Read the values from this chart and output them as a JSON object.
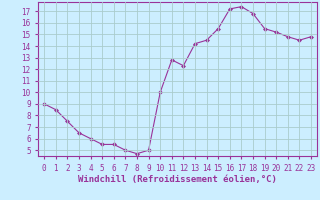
{
  "x": [
    0,
    1,
    2,
    3,
    4,
    5,
    6,
    7,
    8,
    9,
    10,
    11,
    12,
    13,
    14,
    15,
    16,
    17,
    18,
    19,
    20,
    21,
    22,
    23
  ],
  "y": [
    9,
    8.5,
    7.5,
    6.5,
    6,
    5.5,
    5.5,
    5,
    4.7,
    5,
    10,
    12.8,
    12.3,
    14.2,
    14.5,
    15.5,
    17.2,
    17.4,
    16.8,
    15.5,
    15.2,
    14.8,
    14.5,
    14.8
  ],
  "line_color": "#993399",
  "marker_color": "#993399",
  "background_color": "#cceeff",
  "grid_color": "#aacccc",
  "xlabel": "Windchill (Refroidissement éolien,°C)",
  "xlim": [
    -0.5,
    23.5
  ],
  "ylim": [
    4.5,
    17.8
  ],
  "yticks": [
    5,
    6,
    7,
    8,
    9,
    10,
    11,
    12,
    13,
    14,
    15,
    16,
    17
  ],
  "xticks": [
    0,
    1,
    2,
    3,
    4,
    5,
    6,
    7,
    8,
    9,
    10,
    11,
    12,
    13,
    14,
    15,
    16,
    17,
    18,
    19,
    20,
    21,
    22,
    23
  ],
  "tick_fontsize": 5.5,
  "xlabel_fontsize": 6.5,
  "spine_color": "#993399",
  "tick_color": "#993399"
}
